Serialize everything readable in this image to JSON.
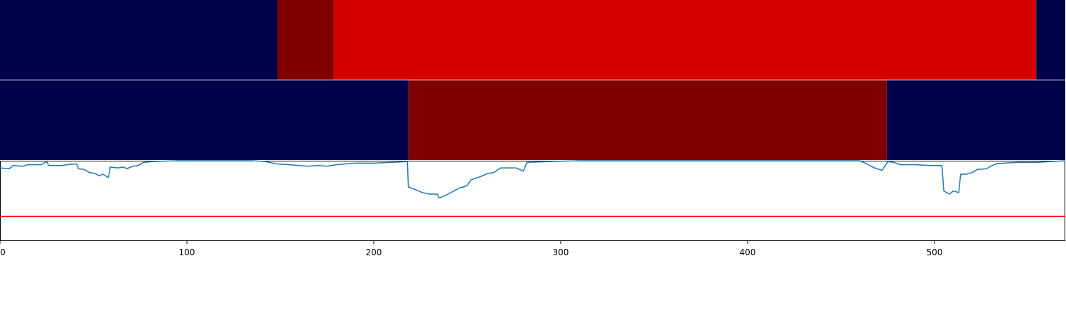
{
  "chart_data": [
    {
      "type": "heatmap",
      "panel": "top-band",
      "xlim": [
        0,
        570
      ],
      "colors": {
        "low": "#000048",
        "mid": "#800000",
        "high": "#d40000"
      },
      "segments": [
        {
          "start": 0,
          "end": 148.5,
          "level": "low"
        },
        {
          "start": 148.5,
          "end": 178.5,
          "level": "mid"
        },
        {
          "start": 178.5,
          "end": 554.5,
          "level": "high"
        },
        {
          "start": 554.5,
          "end": 570,
          "level": "low"
        }
      ]
    },
    {
      "type": "heatmap",
      "panel": "middle-band",
      "xlim": [
        0,
        570
      ],
      "colors": {
        "low": "#000048",
        "mid": "#800000"
      },
      "segments": [
        {
          "start": 0,
          "end": 218.5,
          "level": "low"
        },
        {
          "start": 218.5,
          "end": 474.5,
          "level": "mid"
        },
        {
          "start": 474.5,
          "end": 570,
          "level": "low"
        }
      ]
    },
    {
      "type": "line",
      "panel": "bottom-plot",
      "xlim": [
        0,
        570
      ],
      "ylim": [
        0,
        1
      ],
      "grid": false,
      "x_ticks": [
        0,
        100,
        200,
        300,
        400,
        500
      ],
      "x_tick_labels": [
        "0",
        "100",
        "200",
        "300",
        "400",
        "500"
      ],
      "series": [
        {
          "color": "#1f77b4",
          "points": [
            [
              0,
              0.91
            ],
            [
              5,
              0.9
            ],
            [
              7,
              0.94
            ],
            [
              12,
              0.93
            ],
            [
              15,
              0.95
            ],
            [
              22,
              0.95
            ],
            [
              25,
              0.99
            ],
            [
              26,
              0.94
            ],
            [
              33,
              0.94
            ],
            [
              36,
              0.95
            ],
            [
              41,
              0.96
            ],
            [
              42,
              0.9
            ],
            [
              45,
              0.89
            ],
            [
              48,
              0.85
            ],
            [
              51,
              0.84
            ],
            [
              53,
              0.81
            ],
            [
              55,
              0.83
            ],
            [
              58,
              0.79
            ],
            [
              59,
              0.92
            ],
            [
              63,
              0.91
            ],
            [
              66,
              0.92
            ],
            [
              68,
              0.9
            ],
            [
              71,
              0.93
            ],
            [
              74,
              0.94
            ],
            [
              77,
              0.98
            ],
            [
              82,
              0.99
            ],
            [
              95,
              1.0
            ],
            [
              135,
              1.0
            ],
            [
              142,
              0.99
            ],
            [
              148,
              0.96
            ],
            [
              155,
              0.95
            ],
            [
              160,
              0.94
            ],
            [
              165,
              0.93
            ],
            [
              170,
              0.94
            ],
            [
              175,
              0.93
            ],
            [
              180,
              0.95
            ],
            [
              185,
              0.96
            ],
            [
              190,
              0.97
            ],
            [
              200,
              0.97
            ],
            [
              210,
              0.98
            ],
            [
              218,
              0.99
            ],
            [
              218.5,
              0.67
            ],
            [
              222,
              0.64
            ],
            [
              226,
              0.6
            ],
            [
              230,
              0.58
            ],
            [
              234,
              0.58
            ],
            [
              235,
              0.53
            ],
            [
              238,
              0.56
            ],
            [
              242,
              0.61
            ],
            [
              246,
              0.66
            ],
            [
              248,
              0.67
            ],
            [
              250,
              0.69
            ],
            [
              252,
              0.76
            ],
            [
              257,
              0.8
            ],
            [
              261,
              0.84
            ],
            [
              264,
              0.85
            ],
            [
              268,
              0.91
            ],
            [
              276,
              0.91
            ],
            [
              280,
              0.87
            ],
            [
              282,
              0.98
            ],
            [
              295,
              0.99
            ],
            [
              310,
              1.0
            ],
            [
              460,
              1.0
            ],
            [
              463,
              0.97
            ],
            [
              467,
              0.92
            ],
            [
              469,
              0.9
            ],
            [
              472,
              0.88
            ],
            [
              475,
              0.99
            ],
            [
              478,
              0.98
            ],
            [
              482,
              0.95
            ],
            [
              490,
              0.95
            ],
            [
              498,
              0.94
            ],
            [
              504,
              0.94
            ],
            [
              505,
              0.62
            ],
            [
              508,
              0.58
            ],
            [
              510,
              0.62
            ],
            [
              513,
              0.6
            ],
            [
              514,
              0.83
            ],
            [
              517,
              0.83
            ],
            [
              520,
              0.85
            ],
            [
              523,
              0.89
            ],
            [
              528,
              0.9
            ],
            [
              530,
              0.93
            ],
            [
              533,
              0.96
            ],
            [
              537,
              0.97
            ],
            [
              545,
              0.98
            ],
            [
              555,
              0.98
            ],
            [
              570,
              1.0
            ]
          ]
        },
        {
          "color": "#ff0000",
          "points": [
            [
              0,
              0.3
            ],
            [
              570,
              0.3
            ]
          ]
        }
      ]
    }
  ]
}
